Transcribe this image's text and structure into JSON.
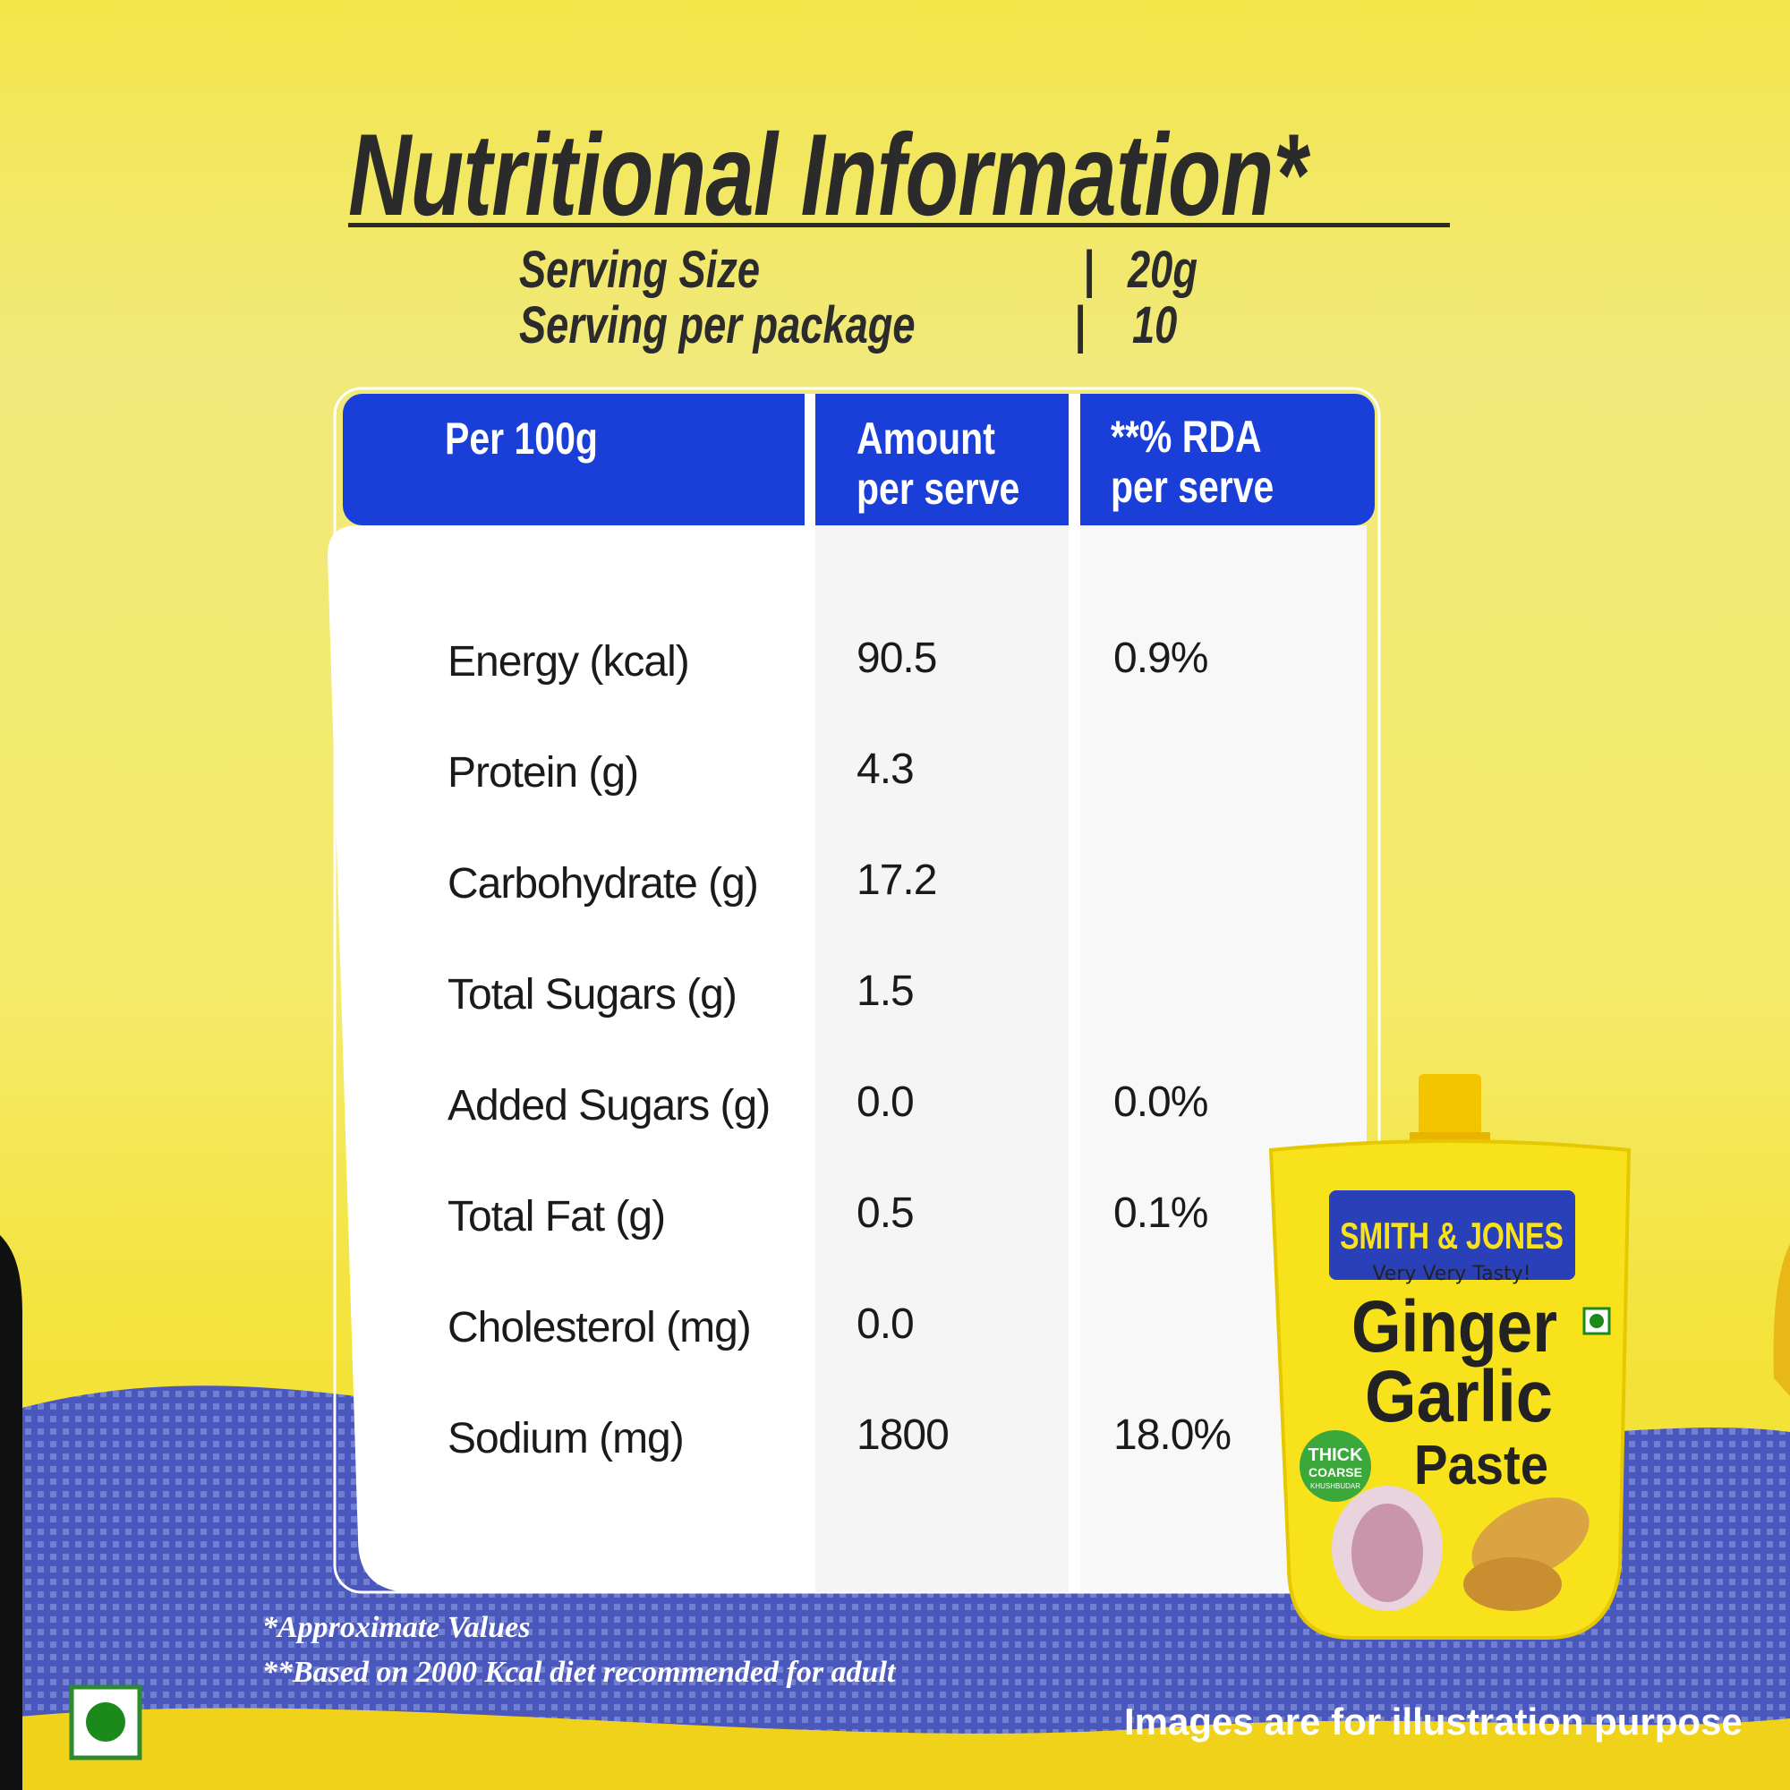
{
  "header": {
    "title": "Nutritional Information*"
  },
  "serving": [
    {
      "label": "Serving Size",
      "separator": "|",
      "value": "20g"
    },
    {
      "label": "Serving per package",
      "separator": "|",
      "value": "10"
    }
  ],
  "table": {
    "columns": [
      [
        "Per 100g"
      ],
      [
        "Amount",
        "per serve"
      ],
      [
        "**% RDA",
        "per serve"
      ]
    ],
    "rows": [
      [
        "Energy (kcal)",
        "90.5",
        "0.9%"
      ],
      [
        "Protein (g)",
        "4.3",
        null
      ],
      [
        "Carbohydrate (g)",
        "17.2",
        null
      ],
      [
        "Total Sugars (g)",
        "1.5",
        null
      ],
      [
        "Added Sugars (g)",
        "0.0",
        "0.0%"
      ],
      [
        "Total Fat (g)",
        "0.5",
        "0.1%"
      ],
      [
        "Cholesterol (mg)",
        "0.0",
        null
      ],
      [
        "Sodium (mg)",
        "1800",
        "18.0%"
      ]
    ]
  },
  "footnotes": [
    "*Approximate Values",
    "**Based on 2000 Kcal diet recommended for adult"
  ],
  "disclaimer": "Images are for illustration purpose",
  "package": {
    "brand": "SMITH & JONES",
    "tagline": "Very Very Tasty!",
    "name": [
      "Ginger",
      "Garlic",
      "Paste"
    ],
    "badge": [
      "THICK",
      "COARSE",
      "KHUSHBUDAR"
    ]
  }
}
